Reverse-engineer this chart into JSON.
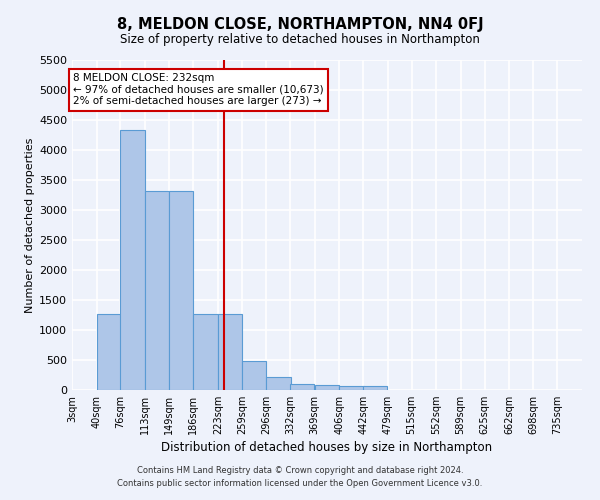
{
  "title": "8, MELDON CLOSE, NORTHAMPTON, NN4 0FJ",
  "subtitle": "Size of property relative to detached houses in Northampton",
  "xlabel": "Distribution of detached houses by size in Northampton",
  "ylabel": "Number of detached properties",
  "footer_line1": "Contains HM Land Registry data © Crown copyright and database right 2024.",
  "footer_line2": "Contains public sector information licensed under the Open Government Licence v3.0.",
  "annotation_title": "8 MELDON CLOSE: 232sqm",
  "annotation_line2": "← 97% of detached houses are smaller (10,673)",
  "annotation_line3": "2% of semi-detached houses are larger (273) →",
  "property_size": 232,
  "bar_color": "#aec6e8",
  "bar_edge_color": "#5a9bd4",
  "vline_color": "#cc0000",
  "background_color": "#eef2fb",
  "grid_color": "#ffffff",
  "categories": [
    "3sqm",
    "40sqm",
    "76sqm",
    "113sqm",
    "149sqm",
    "186sqm",
    "223sqm",
    "259sqm",
    "296sqm",
    "332sqm",
    "369sqm",
    "406sqm",
    "442sqm",
    "479sqm",
    "515sqm",
    "552sqm",
    "589sqm",
    "625sqm",
    "662sqm",
    "698sqm",
    "735sqm"
  ],
  "bin_edges": [
    3,
    40,
    76,
    113,
    149,
    186,
    223,
    259,
    296,
    332,
    369,
    406,
    442,
    479,
    515,
    552,
    589,
    625,
    662,
    698,
    735
  ],
  "bin_width": 37,
  "values": [
    0,
    1270,
    4340,
    3310,
    3310,
    1270,
    1270,
    490,
    210,
    100,
    80,
    60,
    60,
    0,
    0,
    0,
    0,
    0,
    0,
    0,
    0
  ],
  "ylim": [
    0,
    5500
  ],
  "yticks": [
    0,
    500,
    1000,
    1500,
    2000,
    2500,
    3000,
    3500,
    4000,
    4500,
    5000,
    5500
  ]
}
